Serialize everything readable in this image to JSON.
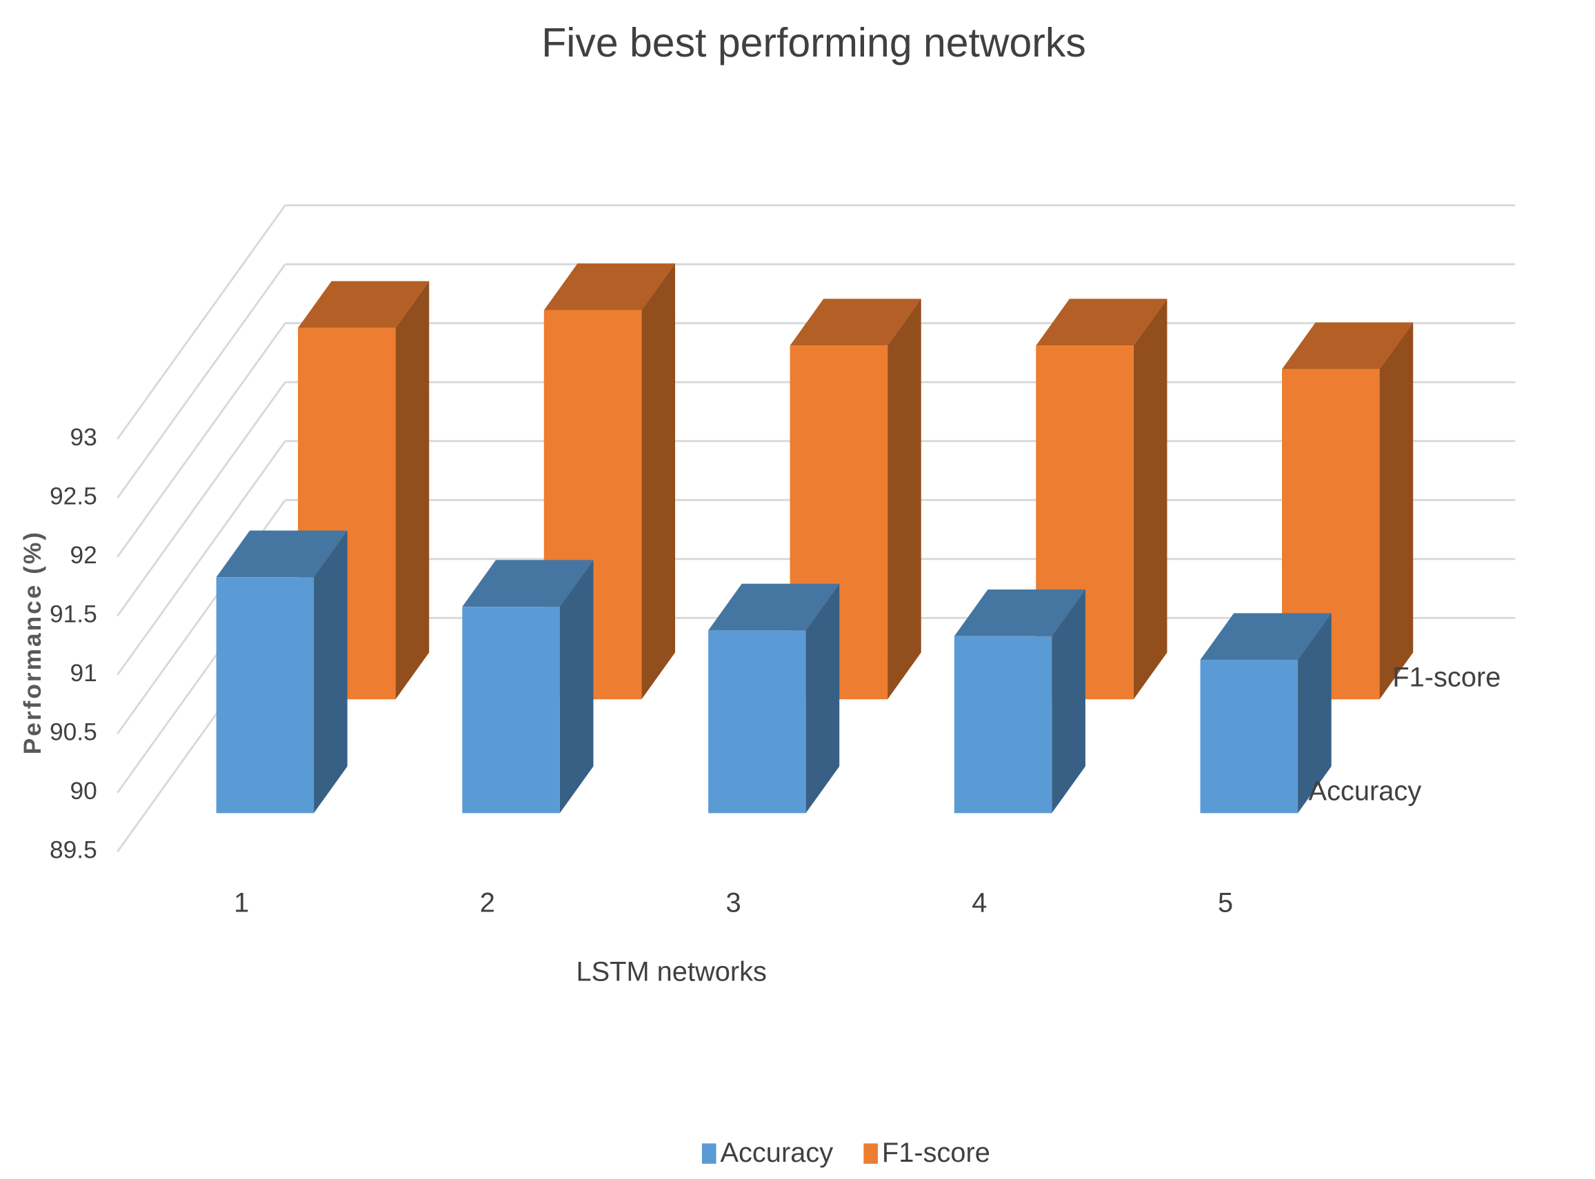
{
  "chart_data": {
    "type": "bar3d",
    "title": "Five best performing networks",
    "x_label": "LSTM networks",
    "y_label": "Performance (%)",
    "categories": [
      "1",
      "2",
      "3",
      "4",
      "5"
    ],
    "series": [
      {
        "name": "Accuracy",
        "color": "#5b9bd5",
        "values": [
          91.5,
          91.25,
          91.05,
          91.0,
          90.8
        ]
      },
      {
        "name": "F1-score",
        "color": "#ed7d31",
        "values": [
          92.65,
          92.8,
          92.5,
          92.5,
          92.3
        ]
      }
    ],
    "ylim": [
      89.5,
      93
    ],
    "yticks": [
      89.5,
      90,
      90.5,
      91,
      91.5,
      92,
      92.5,
      93
    ],
    "grid": true,
    "legend": "bottom"
  }
}
